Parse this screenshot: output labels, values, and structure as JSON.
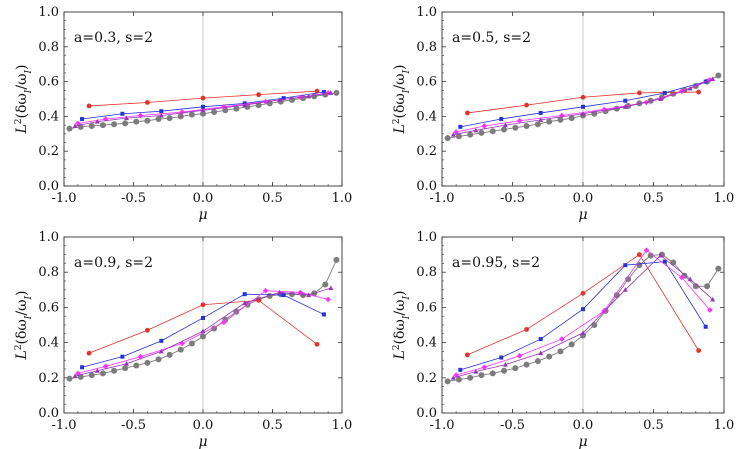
{
  "figure": {
    "colors": {
      "red": "#e8312a",
      "blue": "#2233dd",
      "magenta": "#ff33ff",
      "purple": "#9933bb",
      "pink": "#ff66cc",
      "violet": "#bb66dd",
      "gray": "#7c7c7c",
      "axis": "#333333",
      "zero_line": "#cccccc"
    }
  },
  "chart_data": [
    {
      "type": "line",
      "annotation": "a=0.3, s=2",
      "xlabel": "μ",
      "ylabel_main": "L",
      "ylabel_sup": "2",
      "ylabel_rest": "(δω",
      "ylabel_sub1": "I",
      "ylabel_mid": "/ω",
      "ylabel_sub2": "I",
      "ylabel_end": ")",
      "xlim": [
        -1.0,
        1.0
      ],
      "ylim": [
        0.0,
        1.0
      ],
      "xticks": [
        "-1.0",
        "-0.5",
        "0.0",
        "0.5",
        "1.0"
      ],
      "yticks": [
        "0.0",
        "0.2",
        "0.4",
        "0.6",
        "0.8",
        "1.0"
      ],
      "series": [
        {
          "name": "red",
          "color": "red",
          "x": [
            -0.82,
            -0.4,
            0.0,
            0.4,
            0.82
          ],
          "y": [
            0.46,
            0.48,
            0.505,
            0.525,
            0.545
          ]
        },
        {
          "name": "blue",
          "color": "blue",
          "x": [
            -0.87,
            -0.58,
            -0.3,
            0.0,
            0.3,
            0.58,
            0.87
          ],
          "y": [
            0.385,
            0.415,
            0.43,
            0.455,
            0.475,
            0.505,
            0.54
          ]
        },
        {
          "name": "magenta",
          "color": "magenta",
          "x": [
            -0.9,
            -0.7,
            -0.45,
            -0.15,
            0.15,
            0.45,
            0.7,
            0.9
          ],
          "y": [
            0.36,
            0.385,
            0.405,
            0.425,
            0.455,
            0.485,
            0.51,
            0.535
          ]
        },
        {
          "name": "purple",
          "color": "purple",
          "x": [
            -0.92,
            -0.76,
            -0.55,
            -0.3,
            0.0,
            0.3,
            0.55,
            0.76,
            0.92
          ],
          "y": [
            0.345,
            0.37,
            0.39,
            0.405,
            0.435,
            0.465,
            0.495,
            0.515,
            0.535
          ]
        },
        {
          "name": "gray",
          "color": "gray",
          "x": [
            -0.96,
            -0.88,
            -0.8,
            -0.72,
            -0.64,
            -0.56,
            -0.48,
            -0.4,
            -0.32,
            -0.24,
            -0.16,
            -0.08,
            0.0,
            0.08,
            0.16,
            0.24,
            0.32,
            0.4,
            0.48,
            0.56,
            0.64,
            0.72,
            0.8,
            0.88,
            0.96
          ],
          "y": [
            0.33,
            0.34,
            0.345,
            0.35,
            0.355,
            0.36,
            0.37,
            0.375,
            0.385,
            0.39,
            0.4,
            0.41,
            0.415,
            0.425,
            0.435,
            0.445,
            0.455,
            0.465,
            0.475,
            0.485,
            0.495,
            0.505,
            0.515,
            0.525,
            0.535
          ]
        }
      ]
    },
    {
      "type": "line",
      "annotation": "a=0.5, s=2",
      "xlabel": "μ",
      "ylabel_main": "L",
      "ylabel_sup": "2",
      "ylabel_rest": "(δω",
      "ylabel_sub1": "I",
      "ylabel_mid": "/ω",
      "ylabel_sub2": "I",
      "ylabel_end": ")",
      "xlim": [
        -1.0,
        1.0
      ],
      "ylim": [
        0.0,
        1.0
      ],
      "xticks": [
        "-1.0",
        "-0.5",
        "0.0",
        "0.5",
        "1.0"
      ],
      "yticks": [
        "0.0",
        "0.2",
        "0.4",
        "0.6",
        "0.8",
        "1.0"
      ],
      "series": [
        {
          "name": "red",
          "color": "red",
          "x": [
            -0.82,
            -0.4,
            0.0,
            0.4,
            0.82
          ],
          "y": [
            0.42,
            0.465,
            0.51,
            0.535,
            0.54
          ]
        },
        {
          "name": "blue",
          "color": "blue",
          "x": [
            -0.87,
            -0.58,
            -0.3,
            0.0,
            0.3,
            0.58,
            0.87
          ],
          "y": [
            0.34,
            0.385,
            0.42,
            0.455,
            0.49,
            0.535,
            0.6
          ]
        },
        {
          "name": "magenta",
          "color": "magenta",
          "x": [
            -0.9,
            -0.7,
            -0.45,
            -0.15,
            0.15,
            0.45,
            0.7,
            0.9
          ],
          "y": [
            0.31,
            0.345,
            0.375,
            0.405,
            0.44,
            0.48,
            0.545,
            0.61
          ]
        },
        {
          "name": "purple",
          "color": "purple",
          "x": [
            -0.92,
            -0.76,
            -0.55,
            -0.3,
            0.0,
            0.3,
            0.55,
            0.76,
            0.92
          ],
          "y": [
            0.295,
            0.32,
            0.35,
            0.38,
            0.415,
            0.455,
            0.5,
            0.56,
            0.615
          ]
        },
        {
          "name": "gray",
          "color": "gray",
          "x": [
            -0.96,
            -0.88,
            -0.8,
            -0.72,
            -0.64,
            -0.56,
            -0.48,
            -0.4,
            -0.32,
            -0.24,
            -0.16,
            -0.08,
            0.0,
            0.08,
            0.16,
            0.24,
            0.32,
            0.4,
            0.48,
            0.56,
            0.64,
            0.72,
            0.8,
            0.88,
            0.96
          ],
          "y": [
            0.275,
            0.285,
            0.295,
            0.305,
            0.315,
            0.325,
            0.335,
            0.345,
            0.355,
            0.37,
            0.38,
            0.39,
            0.405,
            0.415,
            0.43,
            0.445,
            0.46,
            0.475,
            0.49,
            0.51,
            0.53,
            0.55,
            0.575,
            0.6,
            0.635
          ]
        }
      ]
    },
    {
      "type": "line",
      "annotation": "a=0.9, s=2",
      "xlabel": "μ",
      "ylabel_main": "L",
      "ylabel_sup": "2",
      "ylabel_rest": "(δω",
      "ylabel_sub1": "I",
      "ylabel_mid": "/ω",
      "ylabel_sub2": "I",
      "ylabel_end": ")",
      "xlim": [
        -1.0,
        1.0
      ],
      "ylim": [
        0.0,
        1.0
      ],
      "xticks": [
        "-1.0",
        "-0.5",
        "0.0",
        "0.5",
        "1.0"
      ],
      "yticks": [
        "0.0",
        "0.2",
        "0.4",
        "0.6",
        "0.8",
        "1.0"
      ],
      "series": [
        {
          "name": "red",
          "color": "red",
          "x": [
            -0.82,
            -0.4,
            0.0,
            0.4,
            0.82
          ],
          "y": [
            0.34,
            0.47,
            0.615,
            0.64,
            0.39
          ]
        },
        {
          "name": "blue",
          "color": "blue",
          "x": [
            -0.87,
            -0.58,
            -0.3,
            0.0,
            0.3,
            0.58,
            0.87
          ],
          "y": [
            0.26,
            0.32,
            0.41,
            0.54,
            0.675,
            0.67,
            0.56
          ]
        },
        {
          "name": "magenta",
          "color": "magenta",
          "x": [
            -0.9,
            -0.7,
            -0.45,
            -0.15,
            0.15,
            0.45,
            0.7,
            0.9
          ],
          "y": [
            0.225,
            0.265,
            0.32,
            0.395,
            0.515,
            0.695,
            0.685,
            0.645
          ]
        },
        {
          "name": "purple",
          "color": "purple",
          "x": [
            -0.92,
            -0.76,
            -0.55,
            -0.3,
            0.0,
            0.3,
            0.55,
            0.76,
            0.92
          ],
          "y": [
            0.21,
            0.24,
            0.28,
            0.35,
            0.465,
            0.625,
            0.685,
            0.67,
            0.71
          ]
        },
        {
          "name": "gray",
          "color": "gray",
          "x": [
            -0.96,
            -0.88,
            -0.8,
            -0.72,
            -0.64,
            -0.56,
            -0.48,
            -0.4,
            -0.32,
            -0.24,
            -0.16,
            -0.08,
            0.0,
            0.08,
            0.16,
            0.24,
            0.32,
            0.4,
            0.48,
            0.56,
            0.64,
            0.72,
            0.8,
            0.88,
            0.96
          ],
          "y": [
            0.195,
            0.205,
            0.215,
            0.225,
            0.24,
            0.255,
            0.27,
            0.285,
            0.305,
            0.33,
            0.36,
            0.395,
            0.435,
            0.48,
            0.53,
            0.575,
            0.615,
            0.645,
            0.665,
            0.675,
            0.675,
            0.67,
            0.68,
            0.73,
            0.87
          ]
        }
      ]
    },
    {
      "type": "line",
      "annotation": "a=0.95, s=2",
      "xlabel": "μ",
      "ylabel_main": "L",
      "ylabel_sup": "2",
      "ylabel_rest": "(δω",
      "ylabel_sub1": "I",
      "ylabel_mid": "/ω",
      "ylabel_sub2": "I",
      "ylabel_end": ")",
      "xlim": [
        -1.0,
        1.0
      ],
      "ylim": [
        0.0,
        1.0
      ],
      "xticks": [
        "-1.0",
        "-0.5",
        "0.0",
        "0.5",
        "1.0"
      ],
      "yticks": [
        "0.0",
        "0.2",
        "0.4",
        "0.6",
        "0.8",
        "1.0"
      ],
      "series": [
        {
          "name": "red",
          "color": "red",
          "x": [
            -0.82,
            -0.4,
            0.0,
            0.4,
            0.82
          ],
          "y": [
            0.33,
            0.475,
            0.68,
            0.9,
            0.355
          ]
        },
        {
          "name": "blue",
          "color": "blue",
          "x": [
            -0.87,
            -0.58,
            -0.3,
            0.0,
            0.3,
            0.58,
            0.87
          ],
          "y": [
            0.245,
            0.315,
            0.42,
            0.59,
            0.84,
            0.86,
            0.49
          ]
        },
        {
          "name": "magenta",
          "color": "magenta",
          "x": [
            -0.9,
            -0.7,
            -0.45,
            -0.15,
            0.15,
            0.45,
            0.7,
            0.9
          ],
          "y": [
            0.215,
            0.26,
            0.325,
            0.42,
            0.58,
            0.925,
            0.77,
            0.585
          ]
        },
        {
          "name": "purple",
          "color": "purple",
          "x": [
            -0.92,
            -0.76,
            -0.55,
            -0.3,
            0.0,
            0.3,
            0.55,
            0.76,
            0.92
          ],
          "y": [
            0.2,
            0.235,
            0.275,
            0.34,
            0.455,
            0.7,
            0.895,
            0.76,
            0.645
          ]
        },
        {
          "name": "gray",
          "color": "gray",
          "x": [
            -0.96,
            -0.88,
            -0.8,
            -0.72,
            -0.64,
            -0.56,
            -0.48,
            -0.4,
            -0.32,
            -0.24,
            -0.16,
            -0.08,
            0.0,
            0.08,
            0.16,
            0.24,
            0.32,
            0.4,
            0.48,
            0.56,
            0.64,
            0.72,
            0.8,
            0.88,
            0.96
          ],
          "y": [
            0.18,
            0.19,
            0.2,
            0.215,
            0.225,
            0.24,
            0.255,
            0.275,
            0.295,
            0.32,
            0.35,
            0.39,
            0.44,
            0.5,
            0.58,
            0.67,
            0.76,
            0.84,
            0.895,
            0.9,
            0.855,
            0.78,
            0.72,
            0.72,
            0.82
          ]
        }
      ]
    }
  ]
}
